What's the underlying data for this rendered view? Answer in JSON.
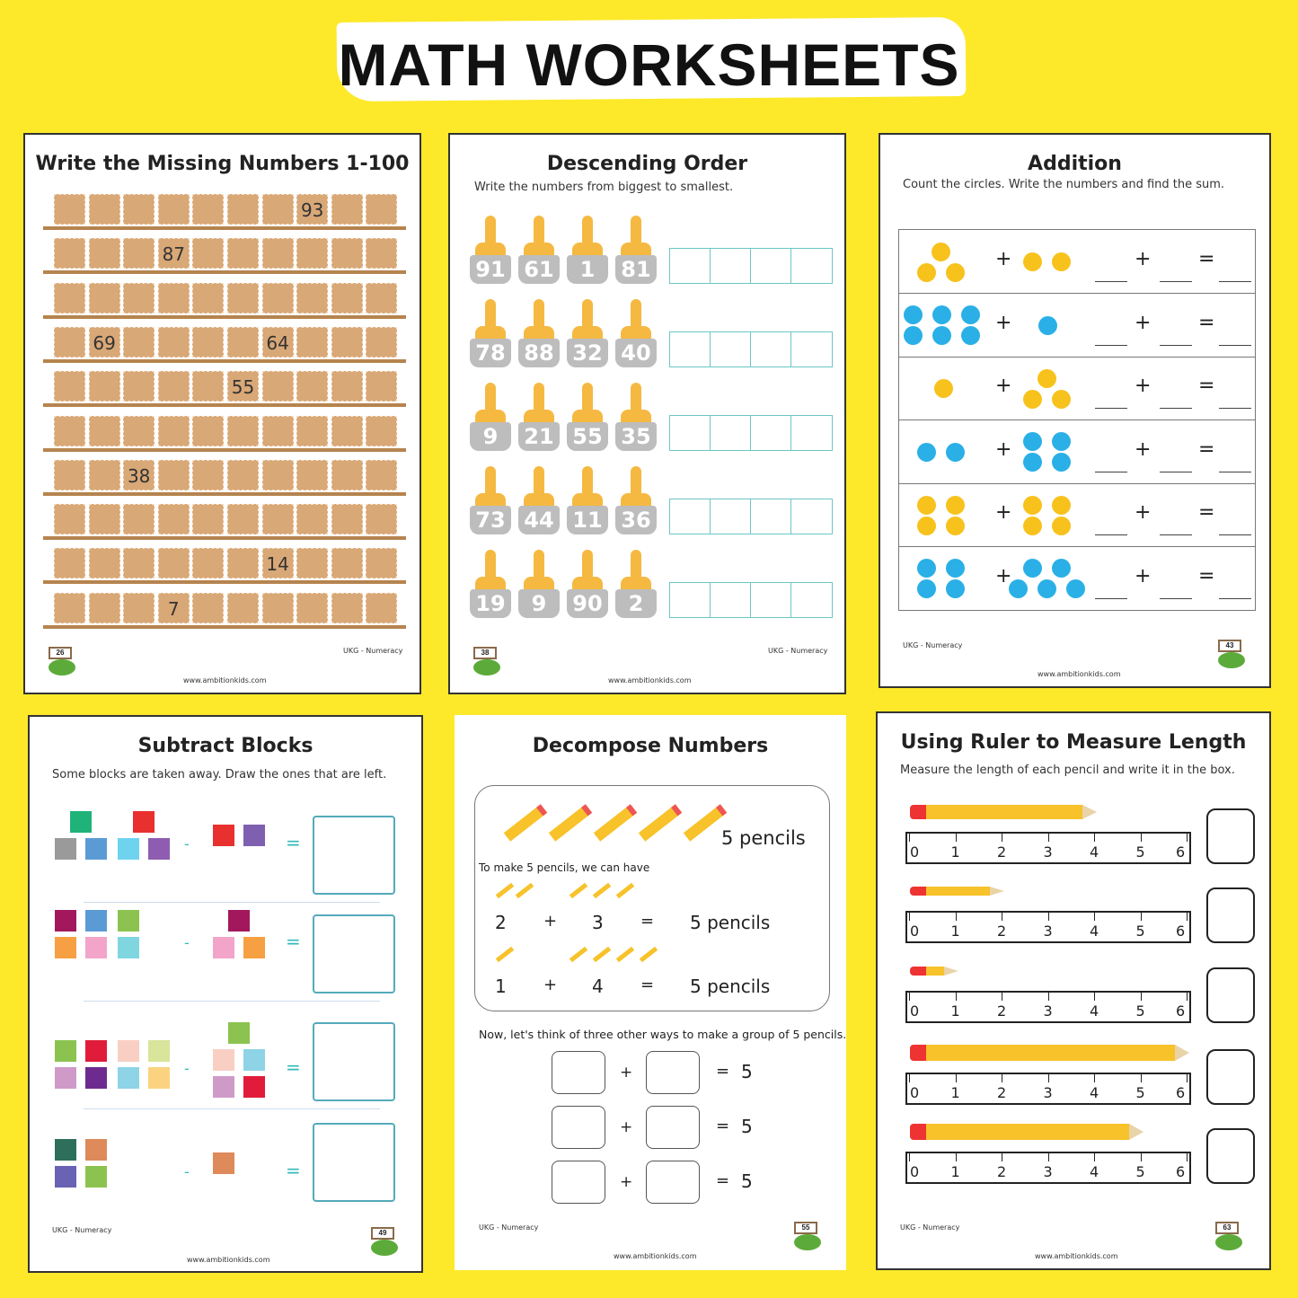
{
  "banner_title": "MATH WORKSHEETS",
  "footer": {
    "level": "UKG - Numeracy",
    "site": "www.ambitionkids.com"
  },
  "colors": {
    "background": "#fde92a",
    "yellow_dot": "#f7c21c",
    "blue_dot": "#2ab0e6",
    "answer_box": "#6cc6c6"
  },
  "ws1": {
    "title": "Write the Missing Numbers 1-100",
    "page": "26",
    "grid": [
      [
        "",
        "",
        "",
        "",
        "",
        "",
        "",
        "93",
        "",
        ""
      ],
      [
        "",
        "",
        "",
        "87",
        "",
        "",
        "",
        "",
        "",
        ""
      ],
      [
        "",
        "",
        "",
        "",
        "",
        "",
        "",
        "",
        "",
        ""
      ],
      [
        "",
        "69",
        "",
        "",
        "",
        "",
        "64",
        "",
        "",
        ""
      ],
      [
        "",
        "",
        "",
        "",
        "",
        "55",
        "",
        "",
        "",
        ""
      ],
      [
        "",
        "",
        "",
        "",
        "",
        "",
        "",
        "",
        "",
        ""
      ],
      [
        "",
        "",
        "38",
        "",
        "",
        "",
        "",
        "",
        "",
        ""
      ],
      [
        "",
        "",
        "",
        "",
        "",
        "",
        "",
        "",
        "",
        ""
      ],
      [
        "",
        "",
        "",
        "",
        "",
        "",
        "14",
        "",
        "",
        ""
      ],
      [
        "",
        "",
        "",
        "7",
        "",
        "",
        "",
        "",
        "",
        ""
      ]
    ]
  },
  "ws2": {
    "title": "Descending Order",
    "subtitle": "Write the numbers from biggest to smallest.",
    "page": "38",
    "rows": [
      [
        "91",
        "61",
        "1",
        "81"
      ],
      [
        "78",
        "88",
        "32",
        "40"
      ],
      [
        "9",
        "21",
        "55",
        "35"
      ],
      [
        "73",
        "44",
        "11",
        "36"
      ],
      [
        "19",
        "9",
        "90",
        "2"
      ]
    ]
  },
  "ws3": {
    "title": "Addition",
    "subtitle": "Count the circles. Write the numbers and find the sum.",
    "page": "43",
    "plus": "+",
    "equals": "=",
    "rows": [
      {
        "left": 3,
        "right": 2,
        "color": "yellow"
      },
      {
        "left": 6,
        "right": 1,
        "color": "blue"
      },
      {
        "left": 1,
        "right": 3,
        "color": "yellow"
      },
      {
        "left": 2,
        "right": 4,
        "color": "blue"
      },
      {
        "left": 4,
        "right": 4,
        "color": "yellow"
      },
      {
        "left": 4,
        "right": 5,
        "color": "blue"
      }
    ]
  },
  "ws4": {
    "title": "Subtract Blocks",
    "subtitle": "Some blocks are taken away. Draw the ones that are left.",
    "page": "49",
    "minus": "-",
    "equals": "="
  },
  "ws5": {
    "title": "Decompose Numbers",
    "page": "55",
    "pencils_label": "5 pencils",
    "intro": "To make 5 pencils, we can have",
    "examples": [
      {
        "a": "2",
        "b": "3",
        "result": "5 pencils"
      },
      {
        "a": "1",
        "b": "4",
        "result": "5 pencils"
      }
    ],
    "prompt": "Now, let's think of three other ways to make a group of 5 pencils.",
    "plus": "+",
    "equals": "=",
    "target": "5"
  },
  "ws6": {
    "title": "Using Ruler to Measure Length",
    "subtitle": "Measure the length of each pencil and write it in the box.",
    "page": "63",
    "ruler_ticks": [
      "0",
      "1",
      "2",
      "3",
      "4",
      "5",
      "6"
    ],
    "pencil_lengths": [
      4,
      2,
      1,
      6,
      5
    ]
  }
}
